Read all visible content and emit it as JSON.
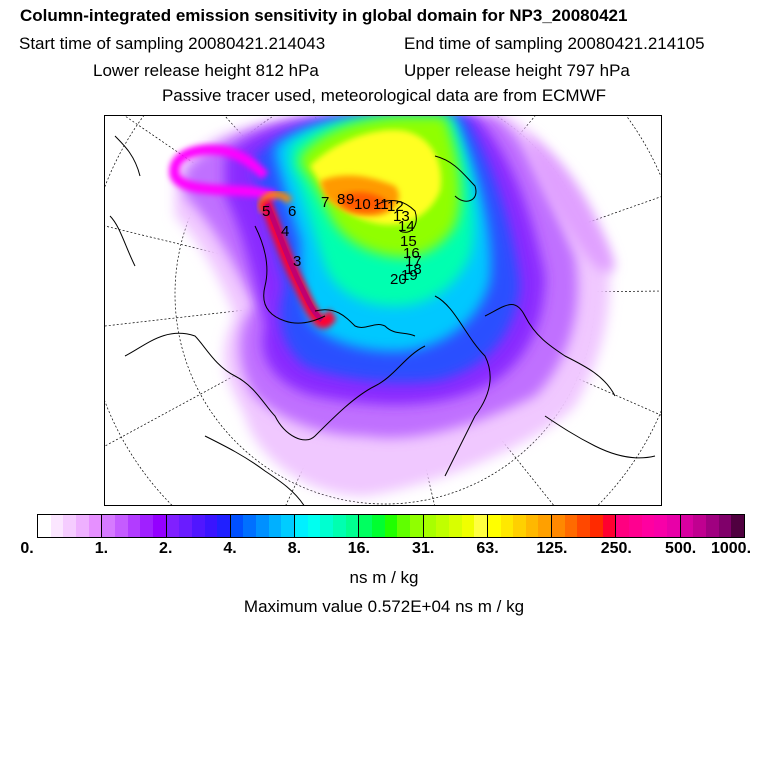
{
  "header": {
    "title": "Column-integrated emission sensitivity in global domain for NP3_20080421",
    "start_label": "Start time of sampling 20080421.214043",
    "end_label": "End time of sampling 20080421.214105",
    "lower_label": "Lower release height  812 hPa",
    "upper_label": "Upper release height  797 hPa",
    "tracer_label": "Passive tracer used, meteorological data are from ECMWF"
  },
  "map": {
    "projection": "north-polar-stereographic",
    "field": "emission-sensitivity-plume",
    "trajectory_labels": [
      "3",
      "4",
      "5",
      "6",
      "7",
      "8",
      "9",
      "10",
      "11",
      "12",
      "13",
      "14",
      "15",
      "16",
      "17",
      "18",
      "19",
      "20"
    ]
  },
  "colorbar": {
    "tick_labels": [
      "0.",
      "1.",
      "2.",
      "4.",
      "8.",
      "16.",
      "31.",
      "63.",
      "125.",
      "250.",
      "500.",
      "1000."
    ],
    "colors": [
      [
        "#ffffff",
        "#fbe6ff",
        "#f5ccff",
        "#eeb0ff",
        "#e690ff"
      ],
      [
        "#d67aff",
        "#c55cff",
        "#b23cff",
        "#a020ff",
        "#9400ff"
      ],
      [
        "#8020ff",
        "#6a1cff",
        "#5016ff",
        "#3a14ff",
        "#2020ff"
      ],
      [
        "#0050ff",
        "#0070ff",
        "#0090ff",
        "#00b0ff",
        "#00ccff"
      ],
      [
        "#00f0ff",
        "#00fff0",
        "#00ffd0",
        "#00ffb0",
        "#00ff90"
      ],
      [
        "#00ff60",
        "#00ff30",
        "#20ff00",
        "#60ff00",
        "#90ff00"
      ],
      [
        "#a8ff00",
        "#c0ff00",
        "#d8ff00",
        "#f0ff00",
        "#ffff40"
      ],
      [
        "#ffff00",
        "#ffe800",
        "#ffd000",
        "#ffb800",
        "#ffa000"
      ],
      [
        "#ff8800",
        "#ff6a00",
        "#ff4800",
        "#ff2a00",
        "#ff0030"
      ],
      [
        "#ff0080",
        "#ff0090",
        "#ff00a0",
        "#f800a8",
        "#e800a8"
      ],
      [
        "#d800a0",
        "#c00090",
        "#a00080",
        "#80006a",
        "#500040"
      ]
    ]
  },
  "units": "ns m / kg",
  "max_value": "Maximum value  0.572E+04 ns m / kg"
}
